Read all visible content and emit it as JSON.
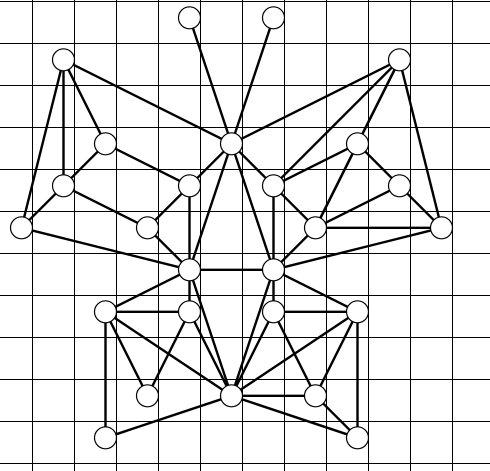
{
  "diagram": {
    "type": "graph-on-grid",
    "grid_cols": 11,
    "grid_rows": 11,
    "grid_step": 42,
    "colors": {
      "background": "#ffffff",
      "grid_line": "#000000",
      "edge": "#000000",
      "node_fill": "#ffffff",
      "node_stroke": "#000000"
    },
    "nodes": [
      {
        "id": "n1",
        "col": 4.75,
        "row": 0.4
      },
      {
        "id": "n2",
        "col": 6.75,
        "row": 0.4
      },
      {
        "id": "n3",
        "col": 1.75,
        "row": 1.4
      },
      {
        "id": "n4",
        "col": 9.75,
        "row": 1.4
      },
      {
        "id": "n5",
        "col": 2.75,
        "row": 3.4
      },
      {
        "id": "n6",
        "col": 5.75,
        "row": 3.4
      },
      {
        "id": "n7",
        "col": 8.75,
        "row": 3.4
      },
      {
        "id": "n8",
        "col": 1.75,
        "row": 4.4
      },
      {
        "id": "n9",
        "col": 4.75,
        "row": 4.4
      },
      {
        "id": "n10",
        "col": 6.75,
        "row": 4.4
      },
      {
        "id": "n11",
        "col": 9.75,
        "row": 4.4
      },
      {
        "id": "n12",
        "col": 0.75,
        "row": 5.4
      },
      {
        "id": "n13",
        "col": 3.75,
        "row": 5.4
      },
      {
        "id": "n14",
        "col": 7.75,
        "row": 5.4
      },
      {
        "id": "n15",
        "col": 10.75,
        "row": 5.4
      },
      {
        "id": "n16",
        "col": 4.75,
        "row": 6.4
      },
      {
        "id": "n17",
        "col": 6.75,
        "row": 6.4
      },
      {
        "id": "n18",
        "col": 2.75,
        "row": 7.4
      },
      {
        "id": "n19",
        "col": 4.75,
        "row": 7.4
      },
      {
        "id": "n20",
        "col": 6.75,
        "row": 7.4
      },
      {
        "id": "n21",
        "col": 8.75,
        "row": 7.4
      },
      {
        "id": "n22",
        "col": 3.75,
        "row": 9.4
      },
      {
        "id": "n23",
        "col": 5.75,
        "row": 9.4
      },
      {
        "id": "n24",
        "col": 7.75,
        "row": 9.4
      },
      {
        "id": "n25",
        "col": 2.75,
        "row": 10.4
      },
      {
        "id": "n26",
        "col": 8.75,
        "row": 10.4
      }
    ],
    "edges": [
      [
        "n1",
        "n6"
      ],
      [
        "n2",
        "n6"
      ],
      [
        "n3",
        "n5"
      ],
      [
        "n3",
        "n6"
      ],
      [
        "n3",
        "n8"
      ],
      [
        "n3",
        "n12"
      ],
      [
        "n4",
        "n6"
      ],
      [
        "n4",
        "n7"
      ],
      [
        "n4",
        "n10"
      ],
      [
        "n4",
        "n14"
      ],
      [
        "n4",
        "n15"
      ],
      [
        "n5",
        "n8"
      ],
      [
        "n5",
        "n9"
      ],
      [
        "n6",
        "n9"
      ],
      [
        "n6",
        "n10"
      ],
      [
        "n6",
        "n16"
      ],
      [
        "n6",
        "n17"
      ],
      [
        "n7",
        "n10"
      ],
      [
        "n7",
        "n11"
      ],
      [
        "n7",
        "n14"
      ],
      [
        "n8",
        "n12"
      ],
      [
        "n8",
        "n13"
      ],
      [
        "n9",
        "n13"
      ],
      [
        "n9",
        "n16"
      ],
      [
        "n10",
        "n14"
      ],
      [
        "n10",
        "n17"
      ],
      [
        "n11",
        "n14"
      ],
      [
        "n11",
        "n15"
      ],
      [
        "n12",
        "n16"
      ],
      [
        "n13",
        "n16"
      ],
      [
        "n14",
        "n15"
      ],
      [
        "n14",
        "n17"
      ],
      [
        "n15",
        "n17"
      ],
      [
        "n16",
        "n17"
      ],
      [
        "n16",
        "n18"
      ],
      [
        "n16",
        "n19"
      ],
      [
        "n16",
        "n23"
      ],
      [
        "n17",
        "n20"
      ],
      [
        "n17",
        "n21"
      ],
      [
        "n17",
        "n23"
      ],
      [
        "n18",
        "n19"
      ],
      [
        "n18",
        "n22"
      ],
      [
        "n18",
        "n23"
      ],
      [
        "n18",
        "n25"
      ],
      [
        "n19",
        "n22"
      ],
      [
        "n19",
        "n23"
      ],
      [
        "n20",
        "n21"
      ],
      [
        "n20",
        "n23"
      ],
      [
        "n20",
        "n24"
      ],
      [
        "n21",
        "n23"
      ],
      [
        "n21",
        "n24"
      ],
      [
        "n21",
        "n26"
      ],
      [
        "n23",
        "n24"
      ],
      [
        "n23",
        "n25"
      ],
      [
        "n23",
        "n26"
      ],
      [
        "n24",
        "n26"
      ]
    ]
  }
}
